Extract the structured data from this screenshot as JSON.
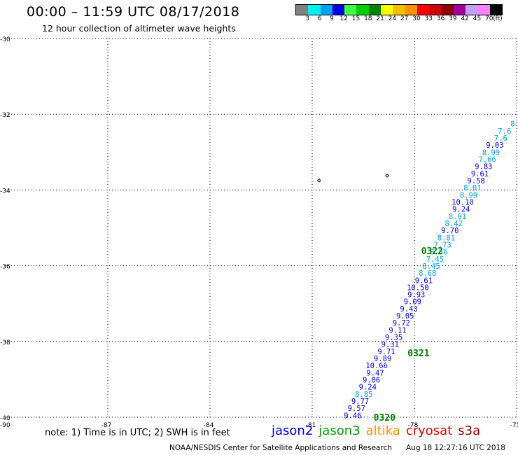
{
  "header": {
    "title": "00:00 – 11:59 UTC 08/17/2018",
    "subtitle": "12 hour collection of altimeter wave heights"
  },
  "colorbar": {
    "colors": [
      "#808080",
      "#00f0f0",
      "#00a0f0",
      "#0000e0",
      "#40ff40",
      "#00d000",
      "#008000",
      "#ffff00",
      "#f0c000",
      "#ff9000",
      "#ff0000",
      "#d00000",
      "#900000",
      "#a000a0",
      "#c0a0ff",
      "#ff80ff",
      "#000000"
    ],
    "labels": [
      "3",
      "6",
      "9",
      "12",
      "15",
      "18",
      "21",
      "24",
      "27",
      "30",
      "33",
      "36",
      "39",
      "42",
      "45",
      "70",
      "(ft)"
    ]
  },
  "map": {
    "lon_range": [
      -90,
      -75
    ],
    "lat_range": [
      -40,
      -30
    ],
    "x_ticks": [
      "-87",
      "-84",
      "-81",
      "-78",
      "-75"
    ],
    "x_tick_values": [
      -87,
      -84,
      -81,
      -78,
      -75
    ],
    "y_ticks": [
      "-30",
      "-32",
      "-34",
      "-36",
      "-38",
      "-40"
    ],
    "y_tick_values": [
      -30,
      -32,
      -34,
      -36,
      -38,
      -40
    ],
    "corner_label": "-90",
    "grid": "dotted"
  },
  "track": {
    "observations": [
      {
        "v": "8",
        "c": "#00a0f0"
      },
      {
        "v": "7.6",
        "c": "#00a0f0"
      },
      {
        "v": "7.6",
        "c": "#00a0f0"
      },
      {
        "v": "9.03",
        "c": "#0000e0"
      },
      {
        "v": "8.99",
        "c": "#00a0f0"
      },
      {
        "v": "7.66",
        "c": "#00a0f0"
      },
      {
        "v": "9.83",
        "c": "#0000e0"
      },
      {
        "v": "9.61",
        "c": "#0000e0"
      },
      {
        "v": "9.58",
        "c": "#0000e0"
      },
      {
        "v": "8.01",
        "c": "#00a0f0"
      },
      {
        "v": "8.99",
        "c": "#00a0f0"
      },
      {
        "v": "10.10",
        "c": "#0000e0"
      },
      {
        "v": "9.24",
        "c": "#0000e0"
      },
      {
        "v": "8.91",
        "c": "#00a0f0"
      },
      {
        "v": "8.42",
        "c": "#00a0f0"
      },
      {
        "v": "9.70",
        "c": "#0000e0"
      },
      {
        "v": "8.81",
        "c": "#00a0f0"
      },
      {
        "v": "7.73",
        "c": "#00a0f0"
      },
      {
        "v": "8.56",
        "c": "#00a0f0"
      },
      {
        "v": "7.45",
        "c": "#00a0f0"
      },
      {
        "v": "8.45",
        "c": "#00a0f0"
      },
      {
        "v": "8.68",
        "c": "#00a0f0"
      },
      {
        "v": "9.61",
        "c": "#0000e0"
      },
      {
        "v": "10.50",
        "c": "#0000e0"
      },
      {
        "v": "9.93",
        "c": "#0000e0"
      },
      {
        "v": "9.09",
        "c": "#0000e0"
      },
      {
        "v": "9.43",
        "c": "#0000e0"
      },
      {
        "v": "9.05",
        "c": "#0000e0"
      },
      {
        "v": "9.72",
        "c": "#0000e0"
      },
      {
        "v": "9.11",
        "c": "#0000e0"
      },
      {
        "v": "9.35",
        "c": "#0000e0"
      },
      {
        "v": "9.31",
        "c": "#0000e0"
      },
      {
        "v": "9.71",
        "c": "#0000e0"
      },
      {
        "v": "9.89",
        "c": "#0000e0"
      },
      {
        "v": "10.66",
        "c": "#0000e0"
      },
      {
        "v": "9.47",
        "c": "#0000e0"
      },
      {
        "v": "9.06",
        "c": "#0000e0"
      },
      {
        "v": "9.24",
        "c": "#0000e0"
      },
      {
        "v": "8.85",
        "c": "#00a0f0"
      },
      {
        "v": "9.77",
        "c": "#0000e0"
      },
      {
        "v": "9.57",
        "c": "#0000e0"
      },
      {
        "v": "9.46",
        "c": "#0000e0"
      }
    ],
    "time_labels": [
      {
        "t": "0322",
        "lon": -77.8,
        "lat": -35.6
      },
      {
        "t": "0321",
        "lon": -78.2,
        "lat": -38.3
      },
      {
        "t": "0320",
        "lon": -79.2,
        "lat": -40.0
      }
    ],
    "time_label_color": "#008000"
  },
  "islands": [
    {
      "lon": -80.8,
      "lat": -33.75
    },
    {
      "lon": -78.8,
      "lat": -33.62
    }
  ],
  "footer": {
    "note": "note:  1) Time is in UTC;  2) SWH is in feet",
    "satellites": [
      {
        "name": "jason2",
        "color": "#0000e0"
      },
      {
        "name": "jason3",
        "color": "#00a000"
      },
      {
        "name": "altika",
        "color": "#ff9000"
      },
      {
        "name": "cryosat",
        "color": "#e00000"
      },
      {
        "name": "s3a",
        "color": "#900000"
      }
    ],
    "credit": "NOAA/NESDIS Center for Satellite Applications and Research",
    "timestamp": "Aug 18 12:27:16 UTC 2018"
  }
}
